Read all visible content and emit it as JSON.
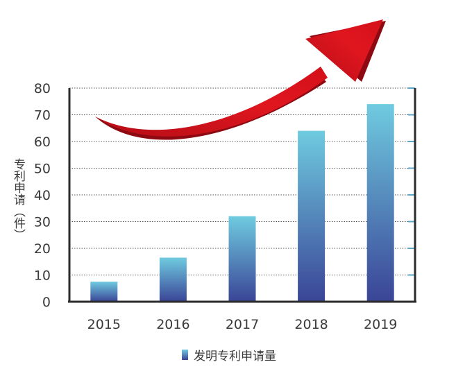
{
  "chart_data": {
    "type": "bar",
    "categories": [
      "2015",
      "2016",
      "2017",
      "2018",
      "2019"
    ],
    "series": [
      {
        "name": "发明专利申请量",
        "values": [
          7.5,
          16.5,
          32,
          64,
          74
        ]
      }
    ],
    "ylabel": "专利申请（件）",
    "ylim": [
      0,
      80
    ],
    "yticks": [
      0,
      10,
      20,
      30,
      40,
      50,
      60,
      70,
      80
    ],
    "grid": true,
    "legend_position": "bottom",
    "colors": {
      "bar_top": "#6fcbe0",
      "bar_bottom": "#3a4496",
      "arrow": "#d7141e",
      "arrow_shadow": "#8e0a12",
      "axis": "#2b2b2b"
    },
    "decoration": "red upward-curving trend arrow"
  }
}
